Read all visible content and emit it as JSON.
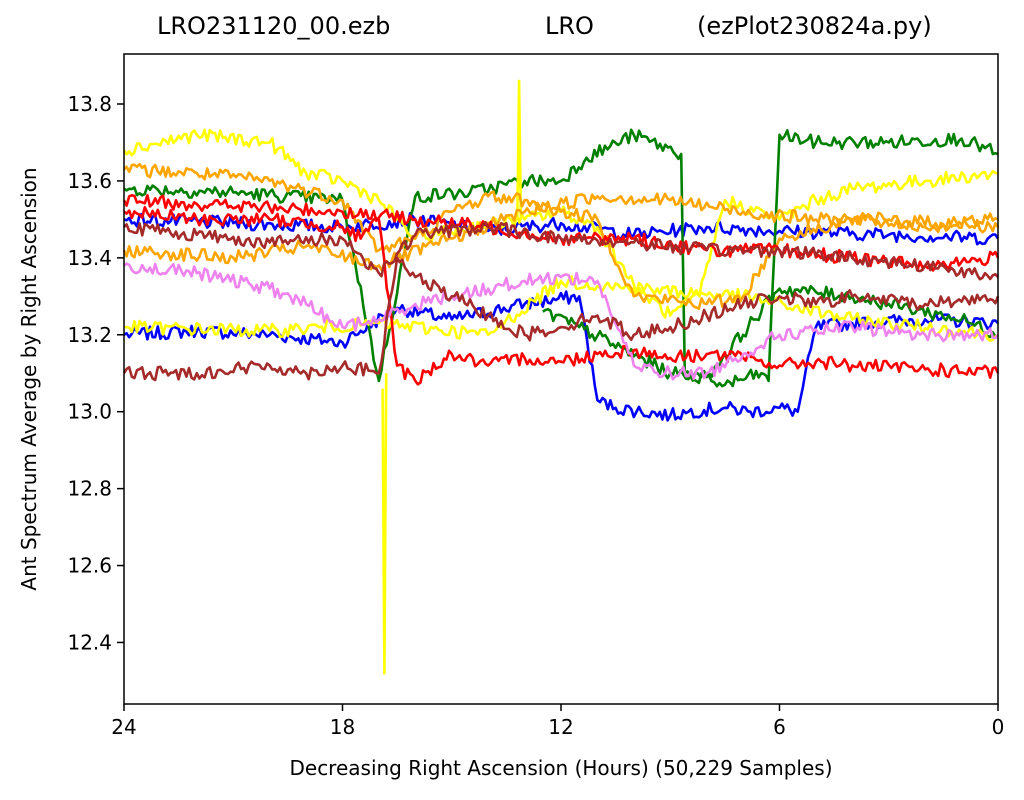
{
  "title": {
    "left": "LRO231120_00.ezb",
    "middle": "LRO",
    "right": "(ezPlot230824a.py)"
  },
  "chart_data": {
    "type": "line",
    "xlabel": "Decreasing Right Ascension (Hours) (50,229 Samples)",
    "ylabel": "Ant Spectrum Average by Right Ascension",
    "xlim": [
      24,
      0
    ],
    "ylim": [
      12.24,
      13.93
    ],
    "x_reversed": true,
    "xticks": [
      24,
      18,
      12,
      6,
      0
    ],
    "yticks": [
      12.4,
      12.6,
      12.8,
      13.0,
      13.2,
      13.4,
      13.6,
      13.8
    ],
    "grid": false,
    "series": [
      {
        "color": "#0000ff",
        "x": [
          24,
          22,
          20,
          18,
          16.5,
          15,
          13,
          11.5,
          11,
          10.5,
          9,
          8.5,
          7.5,
          6.8,
          6,
          5.5,
          5,
          4,
          2,
          0
        ],
        "y": [
          13.2,
          13.21,
          13.2,
          13.18,
          13.27,
          13.24,
          13.28,
          13.3,
          13.03,
          13.01,
          12.99,
          13.0,
          13.01,
          13.0,
          13.01,
          13.0,
          13.22,
          13.23,
          13.24,
          13.23
        ]
      },
      {
        "color": "#0000ff",
        "x": [
          24,
          21,
          18,
          16,
          14,
          12,
          10,
          8,
          6,
          3,
          0
        ],
        "y": [
          13.5,
          13.49,
          13.48,
          13.5,
          13.47,
          13.49,
          13.46,
          13.48,
          13.47,
          13.46,
          13.45
        ]
      },
      {
        "color": "#008000",
        "x": [
          24,
          21,
          18,
          17,
          16,
          14.5,
          13,
          12,
          11.3,
          10,
          8.7,
          8.6,
          7.5,
          6.5,
          6.3,
          6,
          5,
          3,
          1,
          0
        ],
        "y": [
          13.58,
          13.57,
          13.55,
          13.08,
          13.56,
          13.57,
          13.6,
          13.6,
          13.66,
          13.72,
          13.67,
          13.1,
          13.07,
          13.1,
          13.08,
          13.72,
          13.7,
          13.7,
          13.71,
          13.67
        ]
      },
      {
        "color": "#008000",
        "x": [
          12.5,
          11.5,
          9,
          8,
          6,
          4,
          1,
          0
        ],
        "y": [
          13.26,
          13.22,
          13.1,
          13.09,
          13.32,
          13.3,
          13.24,
          13.2
        ]
      },
      {
        "color": "#ffff00",
        "x": [
          24,
          22,
          20,
          19,
          18,
          17,
          16.5,
          16,
          14.5,
          13,
          12,
          11,
          10,
          9,
          8.2,
          7.5,
          6,
          5,
          4,
          2,
          0
        ],
        "y": [
          13.68,
          13.72,
          13.7,
          13.62,
          13.6,
          13.55,
          13.5,
          13.45,
          13.48,
          13.5,
          13.52,
          13.48,
          13.33,
          13.25,
          13.3,
          13.55,
          13.5,
          13.55,
          13.58,
          13.6,
          13.62
        ]
      },
      {
        "color": "#ffff00",
        "x": [
          16.9,
          16.85,
          16.8
        ],
        "y": [
          13.06,
          12.32,
          13.1
        ]
      },
      {
        "color": "#ffff00",
        "x": [
          13.2,
          13.15,
          13.1
        ],
        "y": [
          13.5,
          13.86,
          13.5
        ]
      },
      {
        "color": "#ffff00",
        "x": [
          24,
          20,
          17,
          14,
          12,
          10,
          7,
          4,
          0
        ],
        "y": [
          13.22,
          13.21,
          13.23,
          13.2,
          13.34,
          13.32,
          13.3,
          13.24,
          13.2
        ]
      },
      {
        "color": "#ffa500",
        "x": [
          24,
          22,
          20,
          18,
          17,
          16,
          15,
          14,
          13,
          12,
          11,
          10,
          8,
          7,
          6,
          4,
          2,
          0
        ],
        "y": [
          13.63,
          13.62,
          13.6,
          13.55,
          13.42,
          13.45,
          13.52,
          13.56,
          13.55,
          13.52,
          13.5,
          13.3,
          13.28,
          13.3,
          13.45,
          13.5,
          13.48,
          13.5
        ]
      },
      {
        "color": "#ffa500",
        "x": [
          24,
          21,
          19,
          17,
          15,
          13,
          11,
          9,
          7,
          5,
          3,
          0
        ],
        "y": [
          13.42,
          13.4,
          13.43,
          13.38,
          13.45,
          13.52,
          13.56,
          13.55,
          13.52,
          13.5,
          13.5,
          13.48
        ]
      },
      {
        "color": "#ff0000",
        "x": [
          24,
          22,
          20,
          18,
          17.5,
          17,
          16.5,
          16,
          15,
          14,
          13,
          12,
          11,
          10,
          9,
          8,
          7,
          6,
          5,
          4,
          2,
          0
        ],
        "y": [
          13.52,
          13.5,
          13.5,
          13.48,
          13.45,
          13.5,
          13.12,
          13.08,
          13.15,
          13.12,
          13.14,
          13.13,
          13.15,
          13.16,
          13.14,
          13.15,
          13.14,
          13.12,
          13.13,
          13.12,
          13.11,
          13.1
        ]
      },
      {
        "color": "#ff0000",
        "x": [
          24,
          22,
          20,
          18,
          16,
          14,
          12,
          10,
          8,
          6,
          4,
          2,
          0
        ],
        "y": [
          13.55,
          13.54,
          13.53,
          13.52,
          13.5,
          13.48,
          13.45,
          13.45,
          13.42,
          13.42,
          13.4,
          13.38,
          13.4
        ]
      },
      {
        "color": "#ee82ee",
        "x": [
          24,
          22,
          20,
          19,
          18,
          17,
          16,
          15,
          14,
          13,
          12,
          11,
          10,
          9,
          8,
          7,
          6,
          4,
          2,
          0
        ],
        "y": [
          13.38,
          13.36,
          13.32,
          13.28,
          13.22,
          13.24,
          13.28,
          13.3,
          13.32,
          13.34,
          13.35,
          13.34,
          13.12,
          13.1,
          13.1,
          13.15,
          13.2,
          13.22,
          13.2,
          13.2
        ]
      },
      {
        "color": "#a52a2a",
        "x": [
          24,
          22,
          20,
          19,
          18,
          17,
          16.5,
          16,
          15,
          14,
          13,
          12,
          11,
          10,
          9,
          8,
          7,
          6,
          5,
          4,
          2,
          0
        ],
        "y": [
          13.1,
          13.1,
          13.12,
          13.1,
          13.12,
          13.1,
          13.4,
          13.35,
          13.3,
          13.25,
          13.2,
          13.22,
          13.25,
          13.2,
          13.22,
          13.25,
          13.28,
          13.3,
          13.28,
          13.3,
          13.28,
          13.3
        ]
      },
      {
        "color": "#a52a2a",
        "x": [
          24,
          22,
          20,
          18,
          17,
          16,
          14,
          12,
          10,
          8,
          6,
          4,
          2,
          0
        ],
        "y": [
          13.48,
          13.46,
          13.44,
          13.45,
          13.36,
          13.46,
          13.48,
          13.45,
          13.44,
          13.42,
          13.42,
          13.4,
          13.38,
          13.35
        ]
      }
    ]
  }
}
